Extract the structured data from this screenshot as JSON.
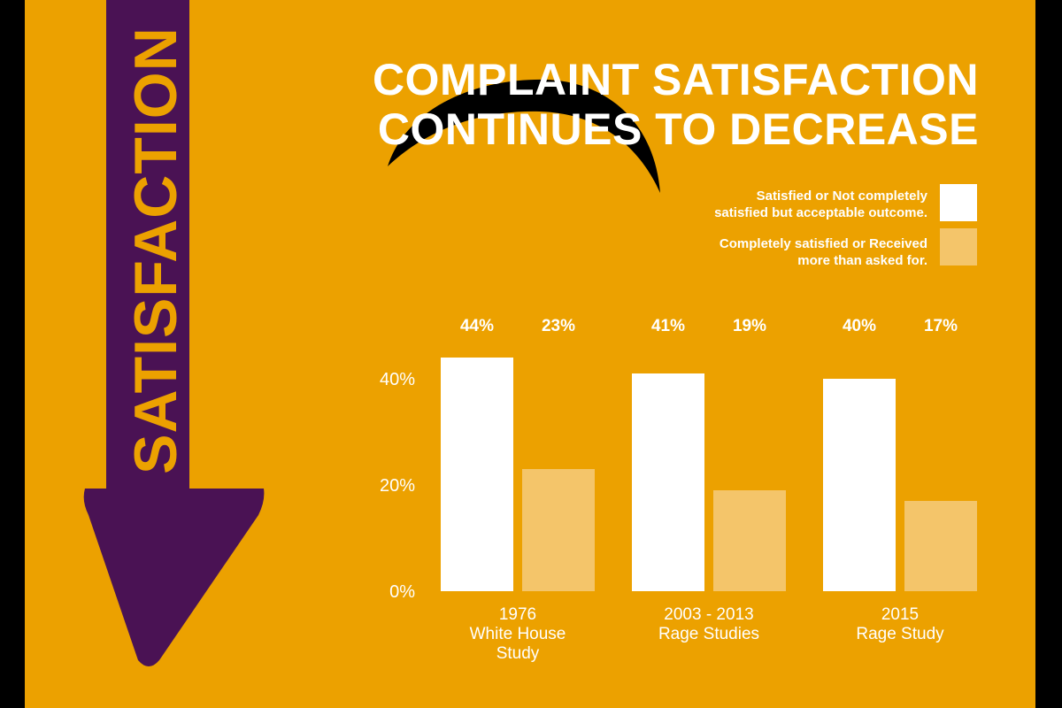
{
  "title_lines": [
    "COMPLAINT SATISFACTION",
    "CONTINUES TO DECREASE"
  ],
  "arrow_word": "SATISFACTION",
  "colors": {
    "background": "#eca100",
    "arrow": "#4a1254",
    "bar_primary": "#ffffff",
    "bar_secondary": "#f4c56a",
    "text": "#ffffff",
    "accent_curve": "#000000"
  },
  "legend": [
    {
      "lines": [
        "Satisfied or Not completely",
        "satisfied but acceptable outcome."
      ],
      "color": "#ffffff"
    },
    {
      "lines": [
        "Completely satisfied or Received",
        "more than asked for."
      ],
      "color": "#f4c56a"
    }
  ],
  "chart_data": {
    "type": "bar",
    "title": "COMPLAINT SATISFACTION CONTINUES TO DECREASE",
    "categories": [
      [
        "1976",
        "White House",
        "Study"
      ],
      [
        "2003 - 2013",
        "Rage  Studies"
      ],
      [
        "2015",
        "Rage Study"
      ]
    ],
    "series": [
      {
        "name": "Satisfied or Not completely satisfied but acceptable outcome.",
        "values": [
          44,
          41,
          40
        ],
        "labels": [
          "44%",
          "41%",
          "40%"
        ]
      },
      {
        "name": "Completely satisfied or Received more than asked for.",
        "values": [
          23,
          19,
          17
        ],
        "labels": [
          "23%",
          "19%",
          "17%"
        ]
      }
    ],
    "ylim": [
      0,
      48
    ],
    "yticks": [
      0,
      20,
      40
    ],
    "ytick_labels": [
      "0%",
      "20%",
      "40%"
    ],
    "grid": false,
    "legend_position": "top-right"
  }
}
